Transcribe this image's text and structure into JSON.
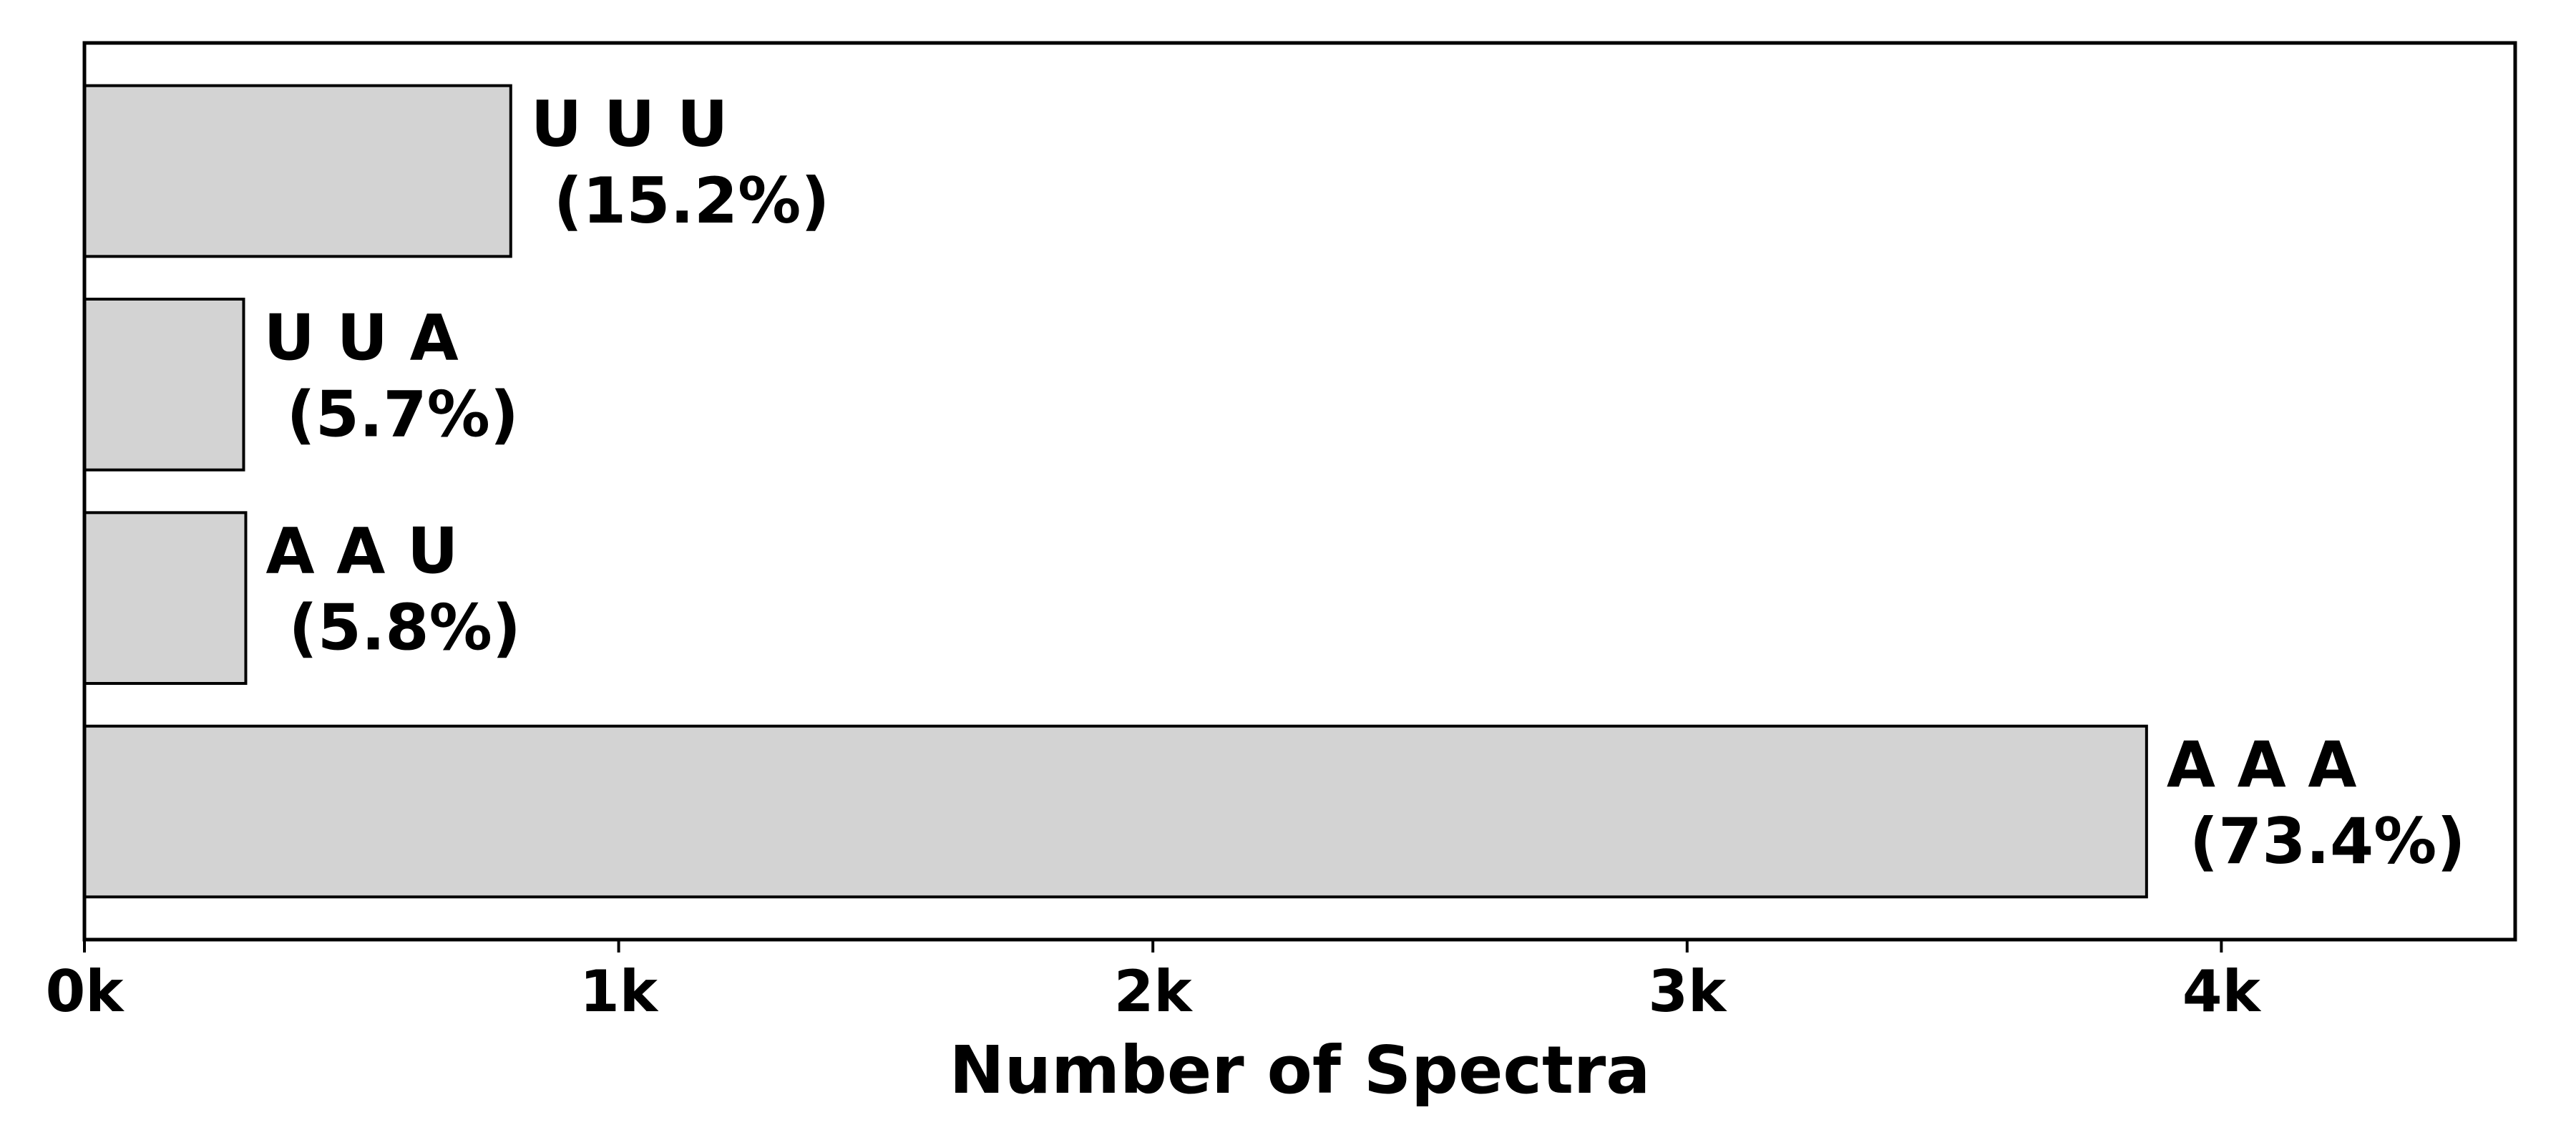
{
  "chart_data": {
    "type": "bar",
    "orientation": "horizontal",
    "categories": [
      "A A A",
      "A A U",
      "U U A",
      "U U U"
    ],
    "values": [
      3860,
      302,
      298,
      798
    ],
    "percent_labels": [
      "(73.4%)",
      "(5.8%)",
      "(5.7%)",
      "(15.2%)"
    ],
    "title": "",
    "xlabel": "Number of Spectra",
    "ylabel": "",
    "xlim": [
      0,
      4550
    ],
    "xticks": [
      0,
      1000,
      2000,
      3000,
      4000
    ],
    "xtick_labels": [
      "0k",
      "1k",
      "2k",
      "3k",
      "4k"
    ],
    "grid": false,
    "legend": "none",
    "bar_color": "#d3d3d3",
    "bar_edge_color": "#000000"
  }
}
